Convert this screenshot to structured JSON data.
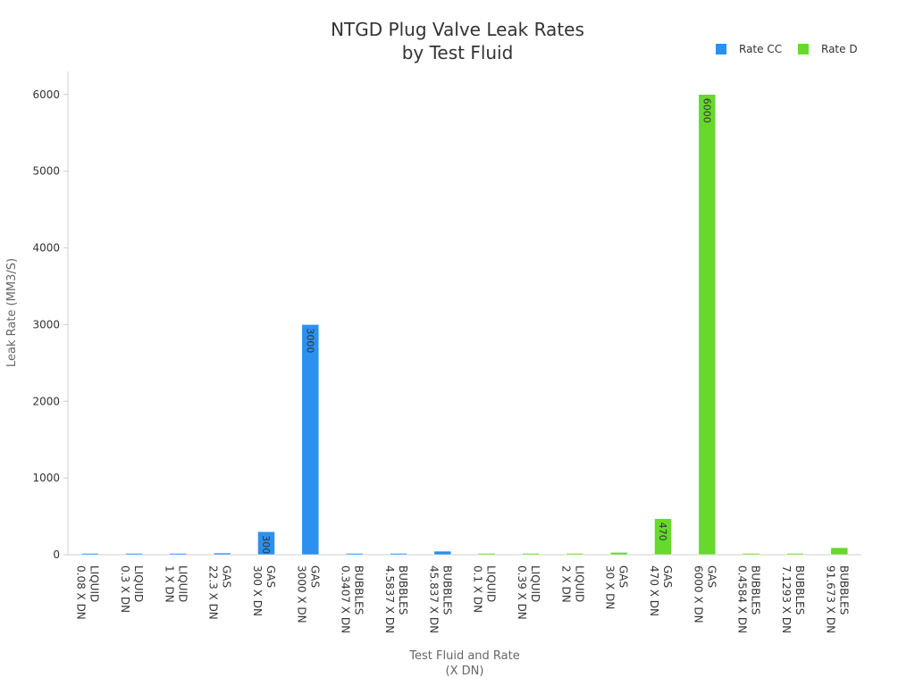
{
  "chart_data": {
    "type": "bar",
    "title_lines": [
      "NTGD Plug Valve Leak Rates",
      "by Test Fluid"
    ],
    "xlabel_lines": [
      "Test Fluid and Rate",
      "(X DN)"
    ],
    "ylabel": "Leak Rate (MM3/S)",
    "ylim": [
      0,
      6300
    ],
    "yticks": [
      0,
      1000,
      2000,
      3000,
      4000,
      5000,
      6000
    ],
    "legend_position": "top-right",
    "categories": [
      [
        "LIQUID",
        "0.08 X DN"
      ],
      [
        "LIQUID",
        "0.3 X DN"
      ],
      [
        "LIQUID",
        "1 X DN"
      ],
      [
        "GAS",
        "22.3 X DN"
      ],
      [
        "GAS",
        "300 X DN"
      ],
      [
        "GAS",
        "3000 X DN"
      ],
      [
        "BUBBLES",
        "0.3407 X DN"
      ],
      [
        "BUBBLES",
        "4.5837 X DN"
      ],
      [
        "BUBBLES",
        "45.837 X DN"
      ],
      [
        "LIQUID",
        "0.1 X DN"
      ],
      [
        "LIQUID",
        "0.39 X DN"
      ],
      [
        "LIQUID",
        "2 X DN"
      ],
      [
        "GAS",
        "30 X DN"
      ],
      [
        "GAS",
        "470 X DN"
      ],
      [
        "GAS",
        "6000 X DN"
      ],
      [
        "BUBBLES",
        "0.4584 X DN"
      ],
      [
        "BUBBLES",
        "7.1293 X DN"
      ],
      [
        "BUBBLES",
        "91.673 X DN"
      ]
    ],
    "series": [
      {
        "name": "Rate CC",
        "color": "#2b90f0",
        "values": [
          0.08,
          0.3,
          1,
          22.3,
          300,
          3000,
          0.3407,
          4.5837,
          45.837,
          null,
          null,
          null,
          null,
          null,
          null,
          null,
          null,
          null
        ],
        "labels": [
          "",
          "",
          "",
          "",
          "300",
          "3000",
          "",
          "",
          "",
          "",
          "",
          "",
          "",
          "",
          "",
          "",
          "",
          ""
        ]
      },
      {
        "name": "Rate D",
        "color": "#66d92a",
        "values": [
          null,
          null,
          null,
          null,
          null,
          null,
          null,
          null,
          null,
          0.1,
          0.39,
          2,
          30,
          470,
          6000,
          0.4584,
          7.1293,
          91.673
        ],
        "labels": [
          "",
          "",
          "",
          "",
          "",
          "",
          "",
          "",
          "",
          "",
          "",
          "",
          "",
          "470",
          "6000",
          "",
          "",
          ""
        ]
      }
    ]
  }
}
